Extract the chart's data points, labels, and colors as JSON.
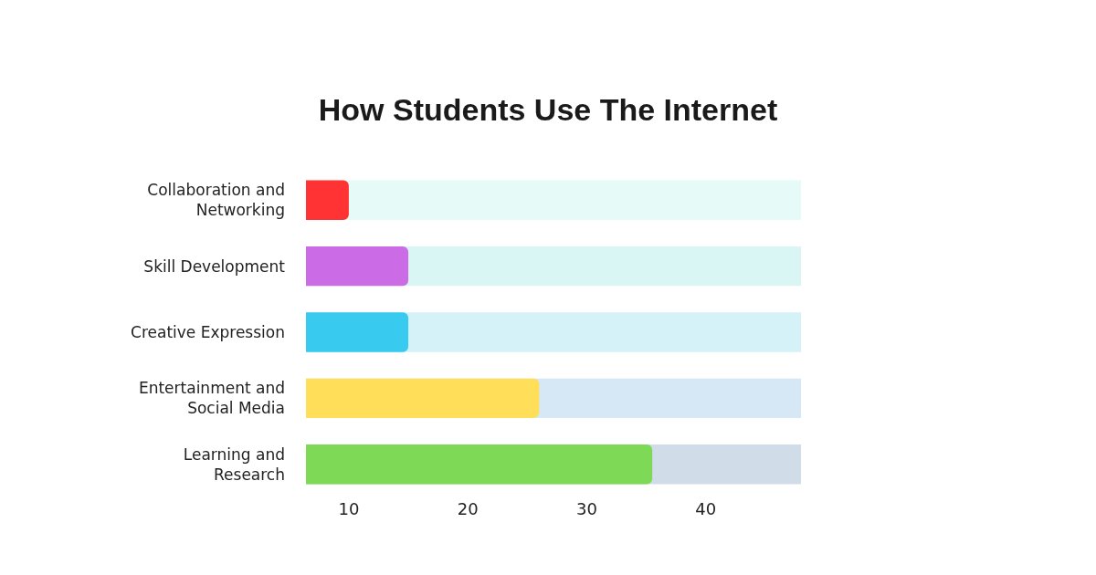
{
  "chart_data": {
    "type": "bar",
    "orientation": "horizontal",
    "title": "How Students Use The Internet",
    "categories": [
      "Collaboration and Networking",
      "Skill Development",
      "Creative Expression",
      "Entertainment and Social Media",
      "Learning and Research"
    ],
    "values": [
      10,
      15,
      15,
      26,
      35.5
    ],
    "colors": [
      "#ff3333",
      "#cb6ce6",
      "#38cbef",
      "#ffde59",
      "#7ed957"
    ],
    "xlim": [
      6.4,
      48
    ],
    "xticks": [
      10,
      20,
      30,
      40
    ],
    "grid": false,
    "legend": false
  }
}
